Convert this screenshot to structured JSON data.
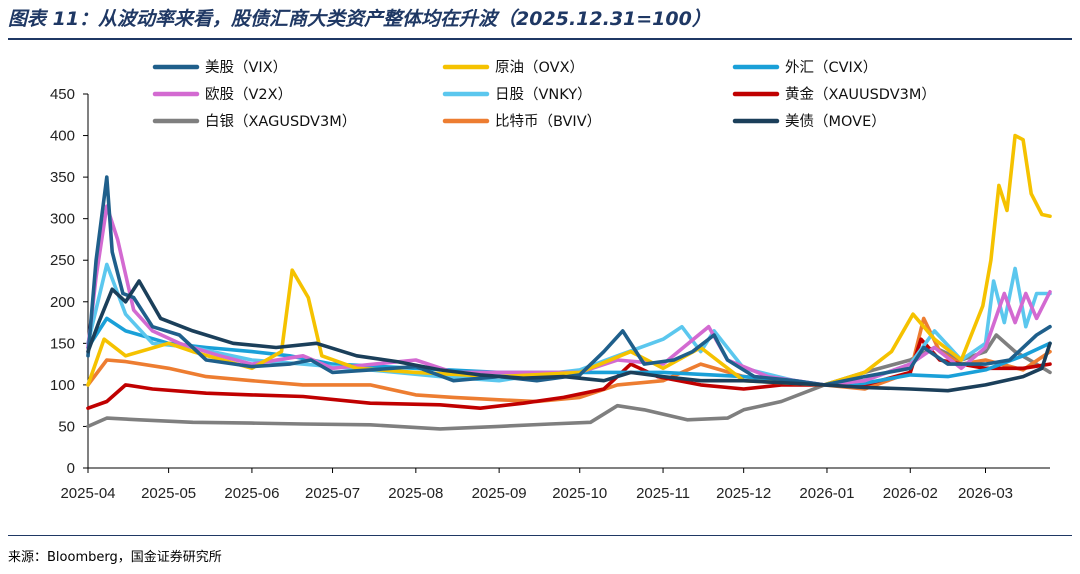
{
  "header": {
    "title": "图表 11：从波动率来看，股债汇商大类资产整体均在升波（2025.12.31=100）"
  },
  "footer": {
    "source": "来源：Bloomberg，国金证券研究所"
  },
  "chart_data": {
    "type": "line",
    "title": "图表 11：从波动率来看，股债汇商大类资产整体均在升波（2025.12.31=100）",
    "xlabel": "",
    "ylabel": "",
    "x_ticks": [
      "2025-04",
      "2025-05",
      "2025-06",
      "2025-07",
      "2025-08",
      "2025-09",
      "2025-10",
      "2025-11",
      "2025-12",
      "2026-01",
      "2026-02",
      "2026-03"
    ],
    "x_range": [
      "2025-04-01",
      "2026-03-25"
    ],
    "ylim": [
      0,
      450
    ],
    "y_ticks": [
      0,
      50,
      100,
      150,
      200,
      250,
      300,
      350,
      400,
      450
    ],
    "grid": false,
    "legend": "top, 3 columns",
    "series": [
      {
        "name": "美股（VIX）",
        "color": "#1f5f8b",
        "points": [
          [
            "2025-04-01",
            135
          ],
          [
            "2025-04-04",
            250
          ],
          [
            "2025-04-08",
            350
          ],
          [
            "2025-04-10",
            260
          ],
          [
            "2025-04-14",
            210
          ],
          [
            "2025-04-18",
            205
          ],
          [
            "2025-04-25",
            170
          ],
          [
            "2025-05-05",
            160
          ],
          [
            "2025-05-15",
            130
          ],
          [
            "2025-06-01",
            122
          ],
          [
            "2025-06-15",
            125
          ],
          [
            "2025-06-23",
            130
          ],
          [
            "2025-07-01",
            115
          ],
          [
            "2025-07-15",
            118
          ],
          [
            "2025-08-01",
            122
          ],
          [
            "2025-08-15",
            105
          ],
          [
            "2025-09-01",
            110
          ],
          [
            "2025-09-15",
            105
          ],
          [
            "2025-10-01",
            112
          ],
          [
            "2025-10-10",
            140
          ],
          [
            "2025-10-17",
            165
          ],
          [
            "2025-10-25",
            125
          ],
          [
            "2025-11-05",
            130
          ],
          [
            "2025-11-12",
            140
          ],
          [
            "2025-11-20",
            160
          ],
          [
            "2025-11-25",
            130
          ],
          [
            "2025-12-05",
            110
          ],
          [
            "2025-12-20",
            105
          ],
          [
            "2025-12-31",
            100
          ],
          [
            "2026-01-15",
            110
          ],
          [
            "2026-02-01",
            120
          ],
          [
            "2026-02-06",
            145
          ],
          [
            "2026-02-15",
            125
          ],
          [
            "2026-03-01",
            125
          ],
          [
            "2026-03-10",
            130
          ],
          [
            "2026-03-20",
            160
          ],
          [
            "2026-03-25",
            170
          ]
        ]
      },
      {
        "name": "原油（OVX）",
        "color": "#f5c200",
        "points": [
          [
            "2025-04-01",
            100
          ],
          [
            "2025-04-07",
            155
          ],
          [
            "2025-04-15",
            135
          ],
          [
            "2025-05-01",
            150
          ],
          [
            "2025-05-10",
            140
          ],
          [
            "2025-06-01",
            120
          ],
          [
            "2025-06-12",
            140
          ],
          [
            "2025-06-16",
            238
          ],
          [
            "2025-06-22",
            205
          ],
          [
            "2025-06-27",
            135
          ],
          [
            "2025-07-10",
            120
          ],
          [
            "2025-08-01",
            115
          ],
          [
            "2025-09-01",
            110
          ],
          [
            "2025-10-01",
            115
          ],
          [
            "2025-10-20",
            140
          ],
          [
            "2025-11-01",
            120
          ],
          [
            "2025-11-15",
            145
          ],
          [
            "2025-12-01",
            105
          ],
          [
            "2025-12-31",
            100
          ],
          [
            "2026-01-15",
            115
          ],
          [
            "2026-01-25",
            140
          ],
          [
            "2026-02-02",
            185
          ],
          [
            "2026-02-10",
            155
          ],
          [
            "2026-02-20",
            130
          ],
          [
            "2026-02-28",
            195
          ],
          [
            "2026-03-03",
            250
          ],
          [
            "2026-03-06",
            340
          ],
          [
            "2026-03-09",
            310
          ],
          [
            "2026-03-12",
            400
          ],
          [
            "2026-03-15",
            395
          ],
          [
            "2026-03-18",
            330
          ],
          [
            "2026-03-22",
            305
          ],
          [
            "2026-03-25",
            303
          ]
        ]
      },
      {
        "name": "外汇（CVIX）",
        "color": "#1aa0d8",
        "points": [
          [
            "2025-04-01",
            145
          ],
          [
            "2025-04-08",
            180
          ],
          [
            "2025-04-15",
            165
          ],
          [
            "2025-05-01",
            150
          ],
          [
            "2025-05-15",
            145
          ],
          [
            "2025-06-01",
            140
          ],
          [
            "2025-06-15",
            135
          ],
          [
            "2025-07-01",
            125
          ],
          [
            "2025-08-01",
            120
          ],
          [
            "2025-09-01",
            115
          ],
          [
            "2025-10-01",
            115
          ],
          [
            "2025-11-01",
            115
          ],
          [
            "2025-12-01",
            110
          ],
          [
            "2025-12-31",
            100
          ],
          [
            "2026-01-15",
            102
          ],
          [
            "2026-02-01",
            112
          ],
          [
            "2026-02-15",
            110
          ],
          [
            "2026-03-01",
            118
          ],
          [
            "2026-03-15",
            135
          ],
          [
            "2026-03-25",
            150
          ]
        ]
      },
      {
        "name": "欧股（V2X）",
        "color": "#d36ad1",
        "points": [
          [
            "2025-04-01",
            145
          ],
          [
            "2025-04-04",
            230
          ],
          [
            "2025-04-08",
            315
          ],
          [
            "2025-04-12",
            275
          ],
          [
            "2025-04-18",
            190
          ],
          [
            "2025-04-25",
            165
          ],
          [
            "2025-05-05",
            150
          ],
          [
            "2025-05-20",
            135
          ],
          [
            "2025-06-01",
            125
          ],
          [
            "2025-06-20",
            135
          ],
          [
            "2025-07-01",
            120
          ],
          [
            "2025-08-01",
            130
          ],
          [
            "2025-08-15",
            115
          ],
          [
            "2025-09-01",
            115
          ],
          [
            "2025-10-01",
            115
          ],
          [
            "2025-10-15",
            130
          ],
          [
            "2025-11-01",
            125
          ],
          [
            "2025-11-18",
            170
          ],
          [
            "2025-11-25",
            130
          ],
          [
            "2025-12-10",
            110
          ],
          [
            "2025-12-31",
            100
          ],
          [
            "2026-01-15",
            105
          ],
          [
            "2026-02-01",
            125
          ],
          [
            "2026-02-10",
            145
          ],
          [
            "2026-02-20",
            120
          ],
          [
            "2026-03-01",
            145
          ],
          [
            "2026-03-08",
            210
          ],
          [
            "2026-03-12",
            175
          ],
          [
            "2026-03-16",
            210
          ],
          [
            "2026-03-20",
            180
          ],
          [
            "2026-03-25",
            212
          ]
        ]
      },
      {
        "name": "日股（VNKY）",
        "color": "#5bc7ee",
        "points": [
          [
            "2025-04-01",
            150
          ],
          [
            "2025-04-08",
            245
          ],
          [
            "2025-04-15",
            185
          ],
          [
            "2025-04-25",
            150
          ],
          [
            "2025-05-10",
            145
          ],
          [
            "2025-06-01",
            130
          ],
          [
            "2025-06-20",
            125
          ],
          [
            "2025-07-15",
            118
          ],
          [
            "2025-08-10",
            110
          ],
          [
            "2025-09-01",
            105
          ],
          [
            "2025-09-15",
            112
          ],
          [
            "2025-10-01",
            118
          ],
          [
            "2025-10-15",
            135
          ],
          [
            "2025-11-01",
            155
          ],
          [
            "2025-11-08",
            170
          ],
          [
            "2025-11-15",
            140
          ],
          [
            "2025-11-20",
            165
          ],
          [
            "2025-12-01",
            120
          ],
          [
            "2025-12-20",
            105
          ],
          [
            "2025-12-31",
            100
          ],
          [
            "2026-01-15",
            105
          ],
          [
            "2026-02-01",
            125
          ],
          [
            "2026-02-10",
            165
          ],
          [
            "2026-02-20",
            130
          ],
          [
            "2026-03-01",
            150
          ],
          [
            "2026-03-04",
            225
          ],
          [
            "2026-03-08",
            175
          ],
          [
            "2026-03-12",
            240
          ],
          [
            "2026-03-16",
            170
          ],
          [
            "2026-03-20",
            210
          ],
          [
            "2026-03-25",
            210
          ]
        ]
      },
      {
        "name": "黄金（XAUUSDV3M）",
        "color": "#c00000",
        "points": [
          [
            "2025-04-01",
            72
          ],
          [
            "2025-04-08",
            80
          ],
          [
            "2025-04-15",
            100
          ],
          [
            "2025-04-25",
            95
          ],
          [
            "2025-05-15",
            90
          ],
          [
            "2025-06-01",
            88
          ],
          [
            "2025-06-20",
            86
          ],
          [
            "2025-07-15",
            78
          ],
          [
            "2025-08-10",
            76
          ],
          [
            "2025-08-25",
            72
          ],
          [
            "2025-09-10",
            78
          ],
          [
            "2025-09-25",
            85
          ],
          [
            "2025-10-10",
            95
          ],
          [
            "2025-10-20",
            125
          ],
          [
            "2025-10-30",
            110
          ],
          [
            "2025-11-15",
            100
          ],
          [
            "2025-12-01",
            95
          ],
          [
            "2025-12-15",
            100
          ],
          [
            "2025-12-31",
            100
          ],
          [
            "2026-01-15",
            100
          ],
          [
            "2026-02-01",
            115
          ],
          [
            "2026-02-05",
            155
          ],
          [
            "2026-02-12",
            130
          ],
          [
            "2026-02-20",
            125
          ],
          [
            "2026-03-01",
            120
          ],
          [
            "2026-03-15",
            120
          ],
          [
            "2026-03-25",
            125
          ]
        ]
      },
      {
        "name": "白银（XAGUSDV3M）",
        "color": "#7f7f7f",
        "points": [
          [
            "2025-04-01",
            50
          ],
          [
            "2025-04-08",
            60
          ],
          [
            "2025-04-20",
            58
          ],
          [
            "2025-05-10",
            55
          ],
          [
            "2025-06-01",
            54
          ],
          [
            "2025-06-20",
            53
          ],
          [
            "2025-07-15",
            52
          ],
          [
            "2025-08-10",
            47
          ],
          [
            "2025-09-01",
            50
          ],
          [
            "2025-09-20",
            53
          ],
          [
            "2025-10-05",
            55
          ],
          [
            "2025-10-15",
            75
          ],
          [
            "2025-10-25",
            70
          ],
          [
            "2025-11-10",
            58
          ],
          [
            "2025-11-25",
            60
          ],
          [
            "2025-12-01",
            70
          ],
          [
            "2025-12-15",
            80
          ],
          [
            "2025-12-31",
            100
          ],
          [
            "2026-01-15",
            115
          ],
          [
            "2026-02-01",
            130
          ],
          [
            "2026-02-10",
            145
          ],
          [
            "2026-02-20",
            130
          ],
          [
            "2026-03-01",
            140
          ],
          [
            "2026-03-05",
            160
          ],
          [
            "2026-03-12",
            140
          ],
          [
            "2026-03-20",
            125
          ],
          [
            "2026-03-25",
            115
          ]
        ]
      },
      {
        "name": "比特币（BVIV）",
        "color": "#ed7d31",
        "points": [
          [
            "2025-04-01",
            100
          ],
          [
            "2025-04-08",
            130
          ],
          [
            "2025-04-15",
            128
          ],
          [
            "2025-05-01",
            120
          ],
          [
            "2025-05-15",
            110
          ],
          [
            "2025-06-01",
            105
          ],
          [
            "2025-06-20",
            100
          ],
          [
            "2025-07-15",
            100
          ],
          [
            "2025-08-01",
            88
          ],
          [
            "2025-08-15",
            85
          ],
          [
            "2025-09-01",
            82
          ],
          [
            "2025-09-15",
            80
          ],
          [
            "2025-10-01",
            85
          ],
          [
            "2025-10-15",
            100
          ],
          [
            "2025-11-01",
            105
          ],
          [
            "2025-11-15",
            125
          ],
          [
            "2025-12-01",
            110
          ],
          [
            "2025-12-31",
            100
          ],
          [
            "2026-01-15",
            95
          ],
          [
            "2026-02-01",
            115
          ],
          [
            "2026-02-06",
            180
          ],
          [
            "2026-02-12",
            140
          ],
          [
            "2026-02-20",
            125
          ],
          [
            "2026-03-01",
            130
          ],
          [
            "2026-03-15",
            118
          ],
          [
            "2026-03-25",
            140
          ]
        ]
      },
      {
        "name": "美债（MOVE）",
        "color": "#1b3f5a",
        "points": [
          [
            "2025-04-01",
            140
          ],
          [
            "2025-04-05",
            175
          ],
          [
            "2025-04-10",
            215
          ],
          [
            "2025-04-15",
            200
          ],
          [
            "2025-04-20",
            225
          ],
          [
            "2025-04-28",
            180
          ],
          [
            "2025-05-10",
            165
          ],
          [
            "2025-05-25",
            150
          ],
          [
            "2025-06-10",
            145
          ],
          [
            "2025-06-25",
            150
          ],
          [
            "2025-07-10",
            135
          ],
          [
            "2025-07-25",
            128
          ],
          [
            "2025-08-10",
            118
          ],
          [
            "2025-08-25",
            112
          ],
          [
            "2025-09-10",
            108
          ],
          [
            "2025-09-25",
            110
          ],
          [
            "2025-10-10",
            105
          ],
          [
            "2025-10-20",
            115
          ],
          [
            "2025-11-01",
            110
          ],
          [
            "2025-11-15",
            105
          ],
          [
            "2025-12-01",
            105
          ],
          [
            "2025-12-31",
            100
          ],
          [
            "2026-01-15",
            97
          ],
          [
            "2026-02-01",
            95
          ],
          [
            "2026-02-15",
            93
          ],
          [
            "2026-03-01",
            100
          ],
          [
            "2026-03-15",
            110
          ],
          [
            "2026-03-22",
            120
          ],
          [
            "2026-03-25",
            150
          ]
        ]
      }
    ]
  }
}
